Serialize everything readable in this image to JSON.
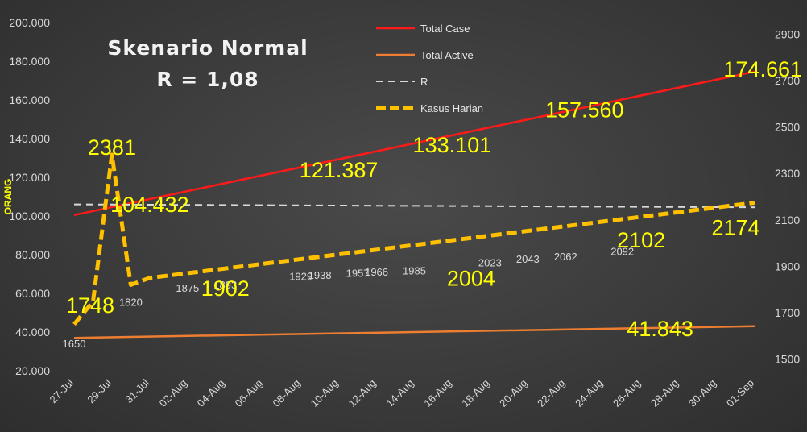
{
  "chart_data": {
    "type": "line",
    "title": "Skenario Normal",
    "subtitle": "R = 1,08",
    "ylabel": "ORANG",
    "x": [
      "27-Jul",
      "28-Jul",
      "29-Jul",
      "30-Jul",
      "31-Jul",
      "01-Aug",
      "02-Aug",
      "03-Aug",
      "04-Aug",
      "05-Aug",
      "06-Aug",
      "07-Aug",
      "08-Aug",
      "09-Aug",
      "10-Aug",
      "11-Aug",
      "12-Aug",
      "13-Aug",
      "14-Aug",
      "15-Aug",
      "16-Aug",
      "17-Aug",
      "18-Aug",
      "19-Aug",
      "20-Aug",
      "21-Aug",
      "22-Aug",
      "23-Aug",
      "24-Aug",
      "25-Aug",
      "26-Aug",
      "27-Aug",
      "28-Aug",
      "29-Aug",
      "30-Aug",
      "31-Aug",
      "01-Sep"
    ],
    "x_tick_labels": [
      "27-Jul",
      "29-Jul",
      "31-Jul",
      "02-Aug",
      "04-Aug",
      "06-Aug",
      "08-Aug",
      "10-Aug",
      "12-Aug",
      "14-Aug",
      "16-Aug",
      "18-Aug",
      "20-Aug",
      "22-Aug",
      "24-Aug",
      "26-Aug",
      "28-Aug",
      "30-Aug",
      "01-Sep"
    ],
    "y_left": {
      "ticks": [
        "20.000",
        "40.000",
        "60.000",
        "80.000",
        "100.000",
        "120.000",
        "140.000",
        "160.000",
        "180.000",
        "200.000"
      ],
      "range": [
        20000,
        200000
      ]
    },
    "y_right": {
      "ticks": [
        "1500",
        "1700",
        "1900",
        "2100",
        "2300",
        "2500",
        "2700",
        "2900"
      ],
      "range": [
        1450,
        2950
      ]
    },
    "series": [
      {
        "name": "Total Case",
        "axis": "left",
        "color": "#ff1a1a",
        "style": "solid",
        "endpoints": [
          {
            "x": "27-Jul",
            "y": 100500
          },
          {
            "x": "01-Sep",
            "y": 174661
          }
        ]
      },
      {
        "name": "Total Active",
        "axis": "left",
        "color": "#ed7d31",
        "style": "solid",
        "endpoints": [
          {
            "x": "27-Jul",
            "y": 37000
          },
          {
            "x": "01-Sep",
            "y": 43000
          }
        ]
      },
      {
        "name": "R",
        "axis": "left",
        "color": "#d9d9d9",
        "style": "dashed",
        "endpoints": [
          {
            "x": "27-Jul",
            "y": 106000
          },
          {
            "x": "01-Sep",
            "y": 104500
          }
        ]
      },
      {
        "name": "Kasus Harian",
        "axis": "right",
        "color": "#ffc000",
        "style": "dashed",
        "points": [
          {
            "x": "27-Jul",
            "y": 1650
          },
          {
            "x": "28-Jul",
            "y": 1748
          },
          {
            "x": "29-Jul",
            "y": 2381
          },
          {
            "x": "30-Jul",
            "y": 1820
          },
          {
            "x": "31-Jul",
            "y": 1850
          },
          {
            "x": "01-Sep",
            "y": 2174
          }
        ]
      }
    ],
    "legend": {
      "position": "top-center",
      "entries": [
        "Total Case",
        "Total Active",
        "R",
        "Kasus Harian"
      ]
    },
    "annotations_large": [
      {
        "text": "2381",
        "x": "29-Jul",
        "y": 2381,
        "axis": "right"
      },
      {
        "text": "1748",
        "x": "27-Jul",
        "y": 1700,
        "axis": "right"
      },
      {
        "text": "104.432",
        "x": "31-Jul",
        "y": 102000,
        "axis": "left"
      },
      {
        "text": "121.387",
        "x": "10-Aug",
        "y": 120000,
        "axis": "left"
      },
      {
        "text": "133.101",
        "x": "16-Aug",
        "y": 133000,
        "axis": "left"
      },
      {
        "text": "157.560",
        "x": "23-Aug",
        "y": 151000,
        "axis": "left"
      },
      {
        "text": "174.661",
        "x": "01-Sep",
        "y": 172000,
        "axis": "left"
      },
      {
        "text": "1902",
        "x": "04-Aug",
        "y": 1773,
        "axis": "right"
      },
      {
        "text": "2004",
        "x": "17-Aug",
        "y": 1817,
        "axis": "right"
      },
      {
        "text": "2102",
        "x": "26-Aug",
        "y": 1982,
        "axis": "right"
      },
      {
        "text": "2174",
        "x": "31-Aug",
        "y": 2035,
        "axis": "right"
      },
      {
        "text": "41.843",
        "x": "27-Aug",
        "y": 38000,
        "axis": "left"
      }
    ],
    "annotations_small": [
      {
        "text": "1650",
        "x": "27-Jul",
        "y": 1550
      },
      {
        "text": "1820",
        "x": "30-Jul",
        "y": 1730
      },
      {
        "text": "1875",
        "x": "02-Aug",
        "y": 1790
      },
      {
        "text": "1893",
        "x": "04-Aug",
        "y": 1805
      },
      {
        "text": "1929",
        "x": "08-Aug",
        "y": 1840
      },
      {
        "text": "1938",
        "x": "09-Aug",
        "y": 1845
      },
      {
        "text": "1957",
        "x": "11-Aug",
        "y": 1855
      },
      {
        "text": "1966",
        "x": "12-Aug",
        "y": 1860
      },
      {
        "text": "1985",
        "x": "14-Aug",
        "y": 1865
      },
      {
        "text": "2023",
        "x": "18-Aug",
        "y": 1900
      },
      {
        "text": "2043",
        "x": "20-Aug",
        "y": 1915
      },
      {
        "text": "2062",
        "x": "22-Aug",
        "y": 1925
      },
      {
        "text": "2092",
        "x": "25-Aug",
        "y": 1948
      }
    ]
  }
}
